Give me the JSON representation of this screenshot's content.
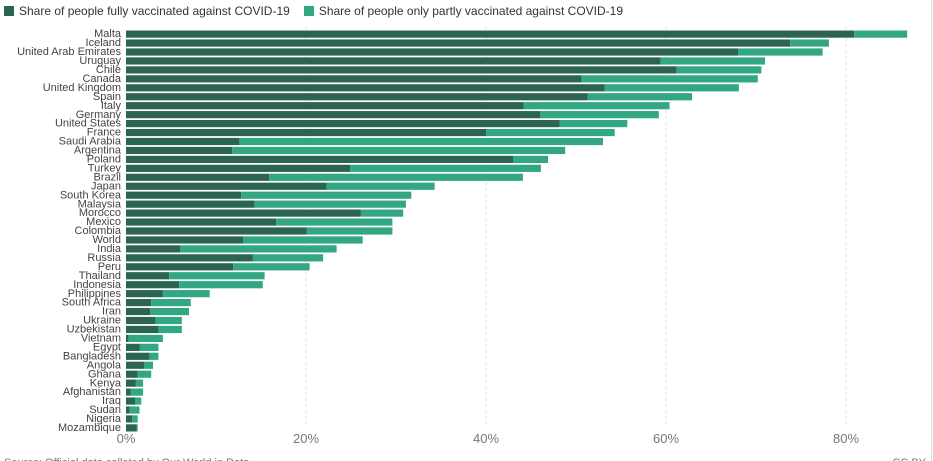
{
  "chart_data": {
    "type": "bar",
    "orientation": "horizontal",
    "stacked": true,
    "title": "",
    "xlabel": "",
    "ylabel": "",
    "xlim": [
      0,
      90
    ],
    "x_ticks": [
      0,
      20,
      40,
      60,
      80
    ],
    "x_tick_labels": [
      "0%",
      "20%",
      "40%",
      "60%",
      "80%"
    ],
    "grid": "vertical dashed",
    "legend_placement": "top-left",
    "categories": [
      "Malta",
      "Iceland",
      "United Arab Emirates",
      "Uruguay",
      "Chile",
      "Canada",
      "United Kingdom",
      "Spain",
      "Italy",
      "Germany",
      "United States",
      "France",
      "Saudi Arabia",
      "Argentina",
      "Poland",
      "Turkey",
      "Brazil",
      "Japan",
      "South Korea",
      "Malaysia",
      "Morocco",
      "Mexico",
      "Colombia",
      "World",
      "India",
      "Russia",
      "Peru",
      "Thailand",
      "Indonesia",
      "Philippines",
      "South Africa",
      "Iran",
      "Ukraine",
      "Uzbekistan",
      "Vietnam",
      "Egypt",
      "Bangladesh",
      "Angola",
      "Ghana",
      "Kenya",
      "Afghanistan",
      "Iraq",
      "Sudan",
      "Nigeria",
      "Mozambique"
    ],
    "series": [
      {
        "name": "Share of people fully vaccinated against COVID-19",
        "color": "#2b6551",
        "values": [
          80.9,
          73.8,
          68.0,
          59.4,
          61.2,
          50.6,
          53.2,
          51.3,
          44.2,
          46.0,
          48.2,
          40.0,
          12.6,
          11.8,
          43.0,
          24.9,
          15.9,
          22.3,
          12.8,
          14.3,
          26.1,
          16.7,
          20.1,
          13.0,
          6.0,
          14.1,
          11.9,
          4.8,
          5.9,
          4.1,
          2.8,
          2.7,
          3.3,
          3.6,
          0.3,
          1.5,
          2.6,
          2.0,
          1.3,
          1.1,
          0.5,
          1.0,
          0.4,
          0.7,
          1.2
        ]
      },
      {
        "name": "Share of people only partly vaccinated against COVID-19",
        "color": "#33a783",
        "values": [
          5.9,
          4.3,
          9.4,
          11.6,
          9.4,
          19.6,
          14.9,
          11.6,
          16.2,
          13.2,
          7.5,
          14.3,
          40.4,
          37.0,
          3.9,
          21.2,
          28.2,
          12.0,
          18.9,
          16.8,
          4.7,
          12.9,
          9.5,
          13.3,
          17.4,
          7.8,
          8.5,
          10.6,
          9.3,
          5.2,
          4.4,
          4.3,
          2.9,
          2.6,
          3.8,
          2.1,
          1.0,
          1.0,
          1.5,
          0.8,
          1.4,
          0.7,
          1.1,
          0.6,
          0.1
        ]
      }
    ]
  },
  "footer": {
    "source": "Source: Official data collated by Our World in Data",
    "license": "CC BY"
  }
}
